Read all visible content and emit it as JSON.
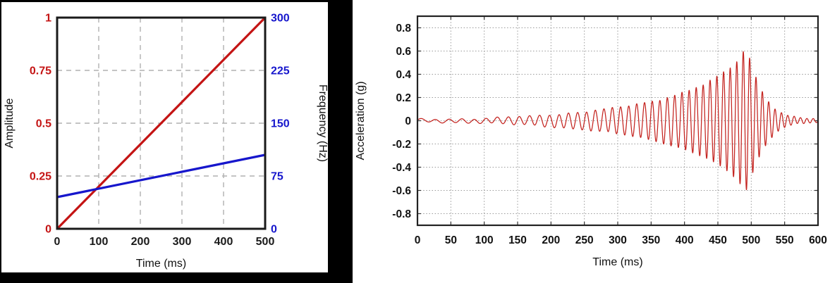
{
  "figure": {
    "description": "Two side-by-side plots: sine-sweep amplitude/frequency schedule and resulting acceleration waveform"
  },
  "chart_data": [
    {
      "id": "sweep-schedule",
      "type": "line",
      "title": "",
      "xlabel": "Time (ms)",
      "xlim": [
        0,
        500
      ],
      "x_ticks": [
        0,
        100,
        200,
        300,
        400,
        500
      ],
      "x_gridlines": [
        100,
        200,
        300,
        400
      ],
      "grid_style": "dashed",
      "frame_color": "#1a1a1a",
      "axes": {
        "left": {
          "label": "Amplitude",
          "color": "#c41414",
          "lim": [
            0,
            1
          ],
          "ticks": [
            0,
            0.25,
            0.5,
            0.75,
            1
          ],
          "gridlines": [
            0.25,
            0.5,
            0.75
          ]
        },
        "right": {
          "label": "Frequency (Hz)",
          "color": "#1616cc",
          "lim": [
            0,
            300
          ],
          "ticks": [
            0,
            75,
            150,
            225,
            300
          ]
        }
      },
      "series": [
        {
          "name": "amplitude",
          "axis": "left",
          "color": "#c41414",
          "x": [
            0,
            500
          ],
          "y": [
            0,
            1
          ]
        },
        {
          "name": "frequency",
          "axis": "right",
          "color": "#1616cc",
          "x": [
            0,
            500
          ],
          "y": [
            45,
            105
          ]
        }
      ]
    },
    {
      "id": "acceleration-waveform",
      "type": "line",
      "title": "",
      "xlabel": "Time (ms)",
      "ylabel": "Acceleration (g)",
      "xlim": [
        0,
        600
      ],
      "ylim": [
        -0.9,
        0.9
      ],
      "x_ticks": [
        0,
        50,
        100,
        150,
        200,
        250,
        300,
        350,
        400,
        450,
        500,
        550,
        600
      ],
      "y_ticks": [
        0.8,
        0.6,
        0.4,
        0.2,
        0,
        -0.2,
        -0.4,
        -0.6,
        -0.8
      ],
      "grid_style": "dotted",
      "frame_color": "#222222",
      "line_color": "#c42420",
      "signal": {
        "kind": "swept-sine chirp with growing envelope and ring-down",
        "freq_hz_start": 45,
        "freq_hz_end": 105,
        "sweep_ms": [
          0,
          500
        ],
        "peak_g": 0.6,
        "trough_g": -0.65,
        "peak_time_ms": 490,
        "envelope": {
          "t_ms": [
            0,
            40,
            80,
            120,
            160,
            200,
            240,
            280,
            320,
            360,
            400,
            430,
            455,
            472,
            483,
            490,
            497,
            505,
            515,
            527,
            540,
            555,
            572,
            600
          ],
          "amp_g": [
            0.01,
            0.013,
            0.018,
            0.026,
            0.037,
            0.052,
            0.072,
            0.098,
            0.132,
            0.178,
            0.248,
            0.315,
            0.4,
            0.47,
            0.54,
            0.62,
            0.55,
            0.4,
            0.27,
            0.16,
            0.085,
            0.045,
            0.025,
            0.015
          ]
        }
      }
    }
  ]
}
